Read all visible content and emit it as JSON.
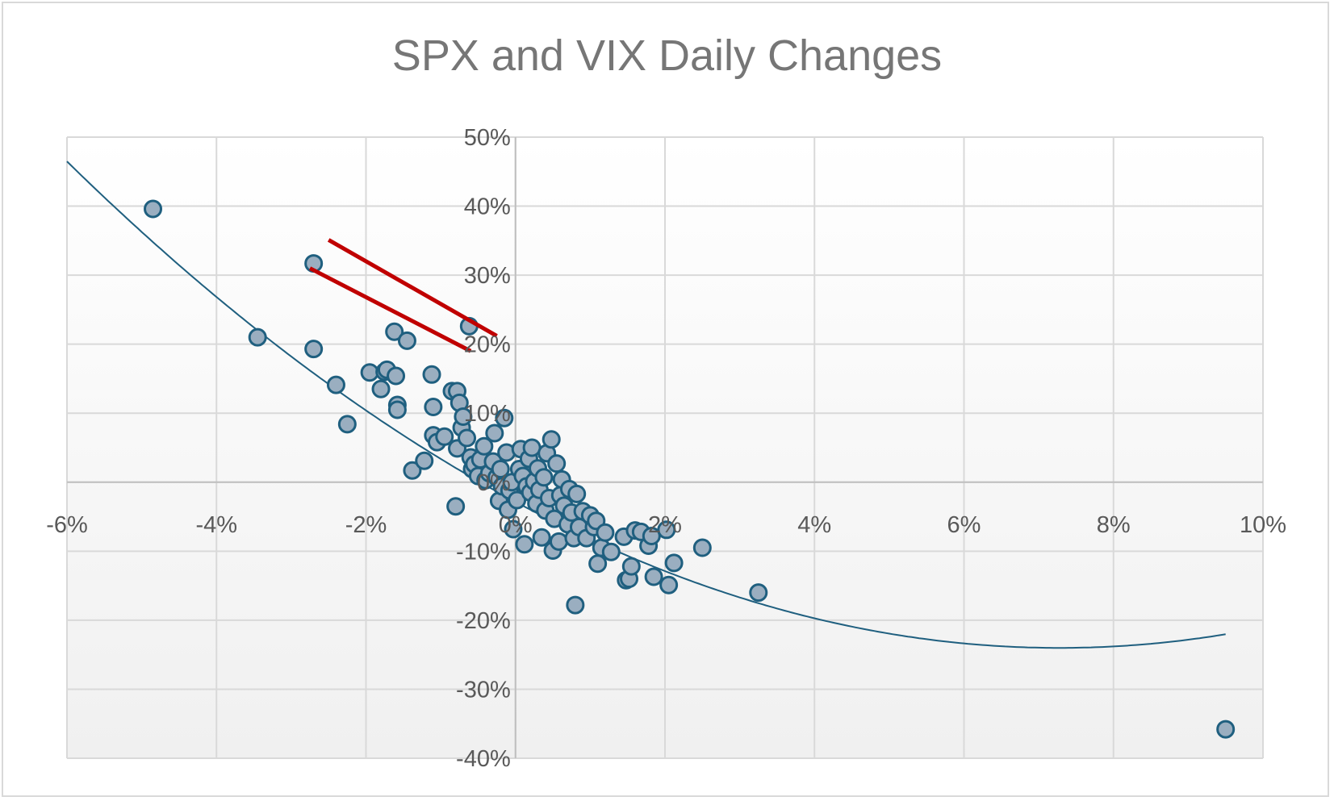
{
  "chart_data": {
    "type": "scatter",
    "title": "SPX and VIX  Daily Changes",
    "xlabel": "",
    "ylabel": "",
    "xlim": [
      -6,
      10
    ],
    "ylim": [
      -40,
      50
    ],
    "x_ticks": [
      -6,
      -4,
      -2,
      0,
      2,
      4,
      6,
      8,
      10
    ],
    "y_ticks": [
      -40,
      -30,
      -20,
      -10,
      0,
      10,
      20,
      30,
      40,
      50
    ],
    "x_tick_labels": [
      "-6%",
      "-4%",
      "-2%",
      "0%",
      "2%",
      "4%",
      "6%",
      "8%",
      "10%"
    ],
    "y_tick_labels": [
      "-40%",
      "-30%",
      "-20%",
      "-10%",
      "0%",
      "10%",
      "20%",
      "30%",
      "40%",
      "50%"
    ],
    "grid": true,
    "legend": "none",
    "colors": {
      "marker_fill": "#9aaec0",
      "marker_stroke": "#1f5f7f",
      "trendline": "#1f5f7f",
      "highlight": "#c00000",
      "grid": "#d9d9d9",
      "plot_bg_top": "#ffffff",
      "plot_bg_bottom": "#f0f0f0"
    },
    "series": [
      {
        "points": [
          [
            -4.85,
            39.6
          ],
          [
            -2.7,
            31.7
          ],
          [
            -3.45,
            21.0
          ],
          [
            -2.7,
            19.3
          ],
          [
            -2.4,
            14.1
          ],
          [
            -2.25,
            8.4
          ],
          [
            -1.95,
            15.9
          ],
          [
            -1.8,
            13.5
          ],
          [
            -1.75,
            16.0
          ],
          [
            -1.72,
            16.3
          ],
          [
            -1.62,
            21.8
          ],
          [
            -1.6,
            15.4
          ],
          [
            -1.58,
            11.2
          ],
          [
            -1.58,
            10.5
          ],
          [
            -1.45,
            20.5
          ],
          [
            -1.38,
            1.7
          ],
          [
            -1.22,
            3.1
          ],
          [
            -1.12,
            15.6
          ],
          [
            -1.1,
            6.8
          ],
          [
            -1.1,
            10.9
          ],
          [
            -1.05,
            5.8
          ],
          [
            -0.95,
            6.6
          ],
          [
            -0.85,
            13.2
          ],
          [
            -0.78,
            13.2
          ],
          [
            -0.75,
            11.5
          ],
          [
            -0.8,
            -3.5
          ],
          [
            -0.78,
            4.9
          ],
          [
            -0.72,
            7.9
          ],
          [
            -0.7,
            9.5
          ],
          [
            -0.65,
            6.4
          ],
          [
            -0.62,
            22.6
          ],
          [
            -0.6,
            3.6
          ],
          [
            -0.58,
            1.9
          ],
          [
            -0.55,
            2.6
          ],
          [
            -0.5,
            0.9
          ],
          [
            -0.47,
            3.3
          ],
          [
            -0.42,
            5.2
          ],
          [
            -0.4,
            0.3
          ],
          [
            -0.35,
            1.3
          ],
          [
            -0.3,
            3.0
          ],
          [
            -0.28,
            7.1
          ],
          [
            -0.25,
            0.7
          ],
          [
            -0.22,
            -2.7
          ],
          [
            -0.2,
            1.9
          ],
          [
            -0.18,
            -0.6
          ],
          [
            -0.15,
            9.3
          ],
          [
            -0.12,
            4.3
          ],
          [
            -0.1,
            -4.0
          ],
          [
            -0.08,
            -1.2
          ],
          [
            -0.05,
            0.0
          ],
          [
            -0.03,
            -6.8
          ],
          [
            0.02,
            -2.6
          ],
          [
            0.05,
            1.9
          ],
          [
            0.07,
            4.8
          ],
          [
            0.1,
            0.9
          ],
          [
            0.12,
            -9.0
          ],
          [
            0.15,
            -0.6
          ],
          [
            0.18,
            3.4
          ],
          [
            0.2,
            -1.5
          ],
          [
            0.22,
            5.0
          ],
          [
            0.25,
            0.1
          ],
          [
            0.28,
            -3.1
          ],
          [
            0.3,
            2.0
          ],
          [
            0.32,
            -1.1
          ],
          [
            0.35,
            -8.0
          ],
          [
            0.38,
            0.7
          ],
          [
            0.4,
            -4.1
          ],
          [
            0.42,
            4.2
          ],
          [
            0.45,
            -2.3
          ],
          [
            0.48,
            6.2
          ],
          [
            0.5,
            -9.9
          ],
          [
            0.52,
            -5.3
          ],
          [
            0.55,
            2.7
          ],
          [
            0.58,
            -8.6
          ],
          [
            0.6,
            -1.9
          ],
          [
            0.62,
            0.4
          ],
          [
            0.65,
            -3.4
          ],
          [
            0.7,
            -6.1
          ],
          [
            0.72,
            -1.0
          ],
          [
            0.75,
            -4.4
          ],
          [
            0.78,
            -8.1
          ],
          [
            0.8,
            -17.8
          ],
          [
            0.82,
            -1.7
          ],
          [
            0.85,
            -6.5
          ],
          [
            0.9,
            -4.2
          ],
          [
            0.95,
            -8.1
          ],
          [
            1.0,
            -4.8
          ],
          [
            1.05,
            -6.5
          ],
          [
            1.08,
            -5.6
          ],
          [
            1.1,
            -11.8
          ],
          [
            1.15,
            -9.5
          ],
          [
            1.2,
            -7.3
          ],
          [
            1.28,
            -10.1
          ],
          [
            1.45,
            -7.9
          ],
          [
            1.48,
            -14.2
          ],
          [
            1.52,
            -14.0
          ],
          [
            1.55,
            -12.2
          ],
          [
            1.6,
            -7.0
          ],
          [
            1.68,
            -7.2
          ],
          [
            1.78,
            -9.2
          ],
          [
            1.82,
            -7.8
          ],
          [
            1.85,
            -13.7
          ],
          [
            2.02,
            -6.9
          ],
          [
            2.05,
            -14.9
          ],
          [
            2.12,
            -11.7
          ],
          [
            2.5,
            -9.5
          ],
          [
            3.25,
            -16.0
          ],
          [
            9.5,
            -35.8
          ]
        ]
      }
    ],
    "trendline": {
      "type": "polynomial",
      "order": 2,
      "coefficients": [
        0.4,
        -5.82,
        -2.84
      ]
    },
    "annotations": [
      {
        "type": "line",
        "color": "#c00000",
        "from": [
          -2.5,
          35.1
        ],
        "to": [
          -0.25,
          21.2
        ]
      },
      {
        "type": "line",
        "color": "#c00000",
        "from": [
          -2.75,
          31.0
        ],
        "to": [
          -0.6,
          19.0
        ]
      }
    ]
  }
}
